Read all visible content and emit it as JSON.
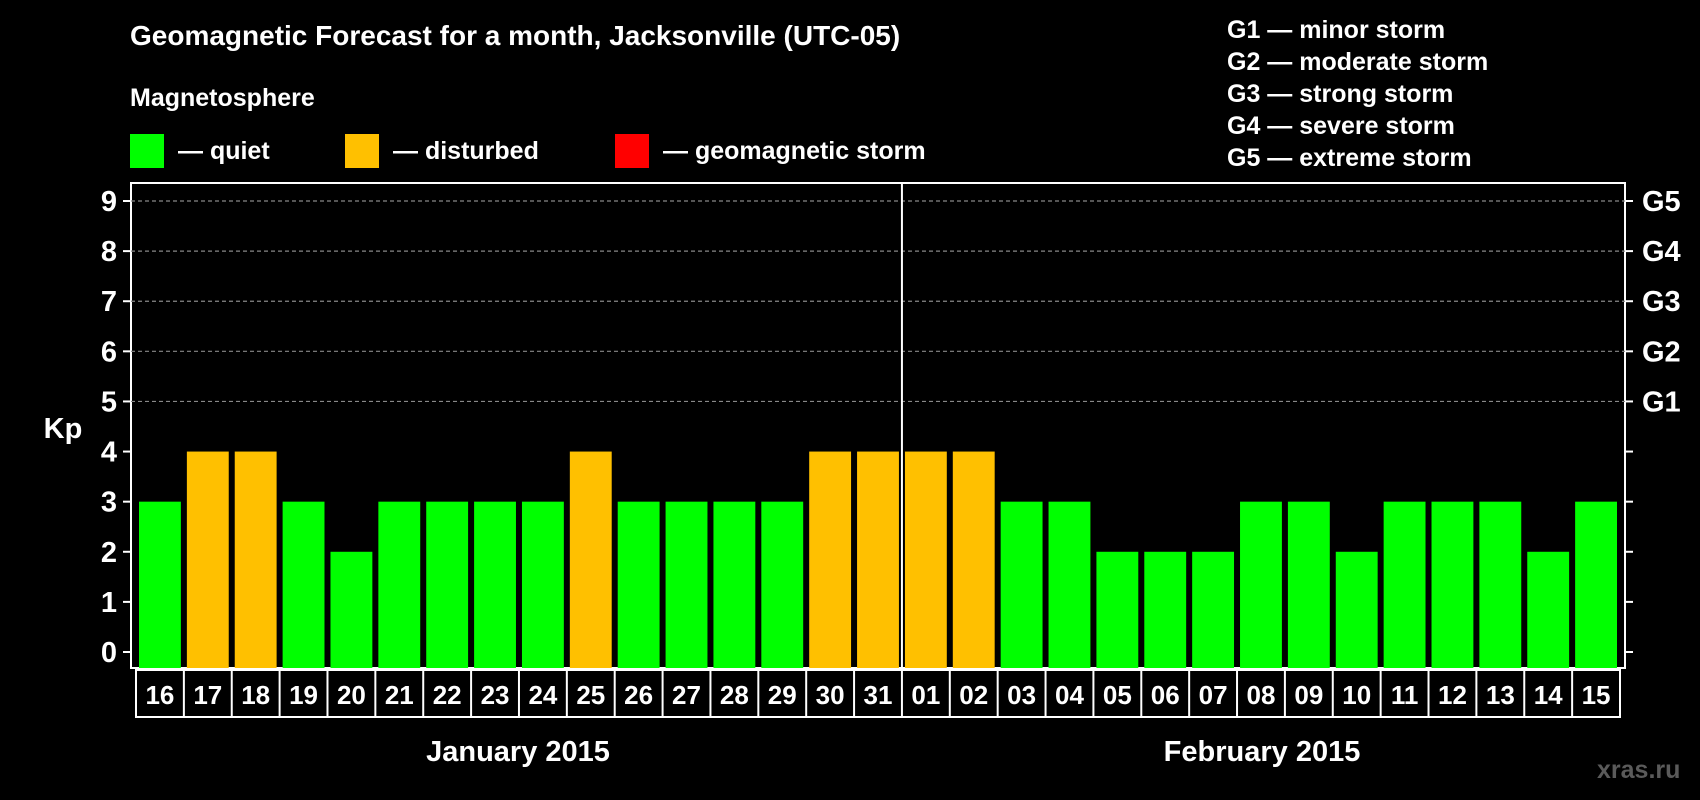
{
  "title": "Geomagnetic Forecast for a month, Jacksonville (UTC-05)",
  "subtitle": "Magnetosphere",
  "legend": [
    {
      "label": "— quiet",
      "color": "#00ff00"
    },
    {
      "label": "— disturbed",
      "color": "#ffc000"
    },
    {
      "label": "— geomagnetic storm",
      "color": "#ff0000"
    }
  ],
  "g_scale": [
    "G1 — minor storm",
    "G2 — moderate storm",
    "G3 — strong storm",
    "G4 — severe storm",
    "G5 — extreme storm"
  ],
  "watermark": "xras.ru",
  "months": [
    "January 2015",
    "February 2015"
  ],
  "chart_data": {
    "type": "bar",
    "ylabel": "Kp",
    "ylim": [
      0,
      9
    ],
    "yticks": [
      "0",
      "1",
      "2",
      "3",
      "4",
      "5",
      "6",
      "7",
      "8",
      "9"
    ],
    "right_labels": [
      {
        "kp": 5,
        "label": "G1"
      },
      {
        "kp": 6,
        "label": "G2"
      },
      {
        "kp": 7,
        "label": "G3"
      },
      {
        "kp": 8,
        "label": "G4"
      },
      {
        "kp": 9,
        "label": "G5"
      }
    ],
    "grid": "dashed at Kp 5-9",
    "categories": [
      "16",
      "17",
      "18",
      "19",
      "20",
      "21",
      "22",
      "23",
      "24",
      "25",
      "26",
      "27",
      "28",
      "29",
      "30",
      "31",
      "01",
      "02",
      "03",
      "04",
      "05",
      "06",
      "07",
      "08",
      "09",
      "10",
      "11",
      "12",
      "13",
      "14",
      "15"
    ],
    "values": [
      3,
      4,
      4,
      3,
      2,
      3,
      3,
      3,
      3,
      4,
      3,
      3,
      3,
      3,
      4,
      4,
      4,
      4,
      3,
      3,
      2,
      2,
      2,
      3,
      3,
      2,
      3,
      3,
      3,
      2,
      3
    ],
    "colors": {
      "quiet": "#00ff00",
      "disturbed": "#ffc000",
      "storm": "#ff0000"
    }
  }
}
